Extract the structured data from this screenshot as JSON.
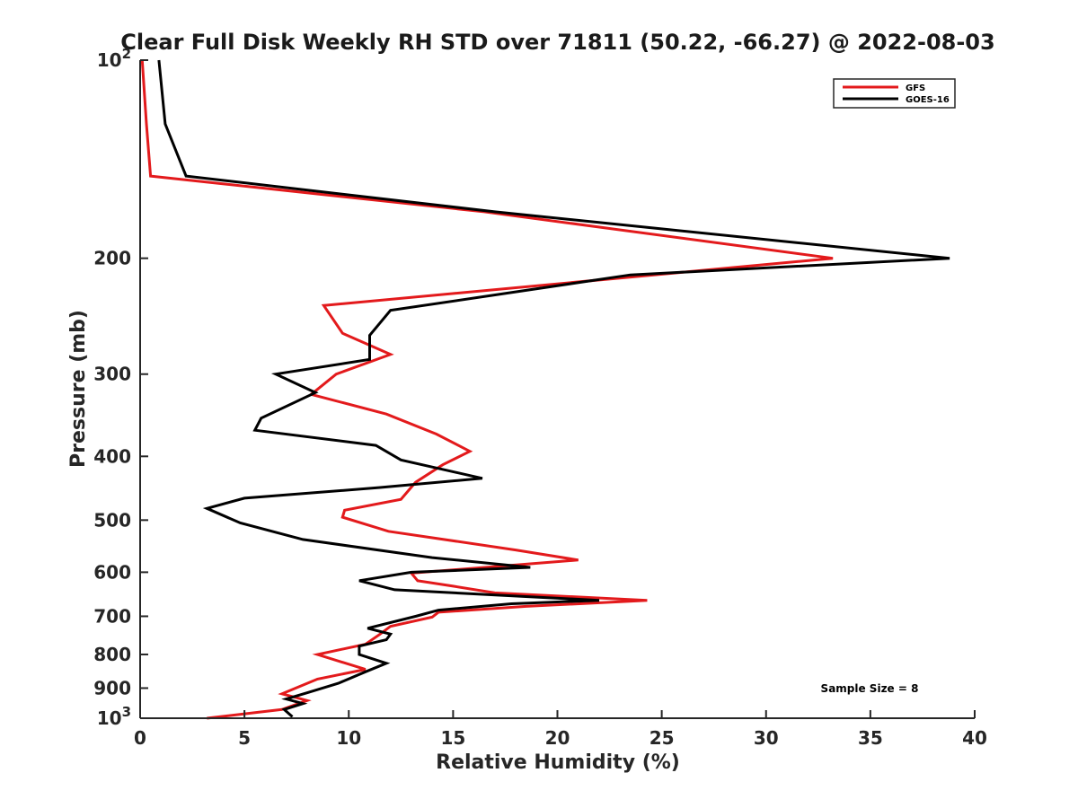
{
  "chart_data": {
    "type": "line",
    "title": "Clear Full Disk Weekly RH STD over 71811 (50.22, -66.27) @ 2022-08-03",
    "xlabel": "Relative Humidity (%)",
    "ylabel": "Pressure (mb)",
    "xlim": [
      0,
      40
    ],
    "ylim": [
      100,
      1000
    ],
    "y_scale": "log",
    "y_reversed": true,
    "x_ticks": [
      0,
      5,
      10,
      15,
      20,
      25,
      30,
      35,
      40
    ],
    "y_ticks": [
      {
        "value": 100,
        "base": "10",
        "exp": "2"
      },
      {
        "value": 200,
        "label": "200"
      },
      {
        "value": 300,
        "label": "300"
      },
      {
        "value": 400,
        "label": "400"
      },
      {
        "value": 500,
        "label": "500"
      },
      {
        "value": 600,
        "label": "600"
      },
      {
        "value": 700,
        "label": "700"
      },
      {
        "value": 800,
        "label": "800"
      },
      {
        "value": 900,
        "label": "900"
      },
      {
        "value": 1000,
        "base": "10",
        "exp": "3"
      }
    ],
    "legend_position": "top-right",
    "grid": false,
    "series": [
      {
        "name": "GFS",
        "color": "#e31a1c",
        "points": [
          [
            0.1,
            100
          ],
          [
            0.3,
            125
          ],
          [
            0.5,
            150
          ],
          [
            16.5,
            170
          ],
          [
            33.2,
            200
          ],
          [
            8.8,
            236
          ],
          [
            9.7,
            260
          ],
          [
            12.0,
            280
          ],
          [
            9.4,
            300
          ],
          [
            8.2,
            322
          ],
          [
            11.8,
            345
          ],
          [
            14.2,
            370
          ],
          [
            15.8,
            393
          ],
          [
            14.5,
            412
          ],
          [
            13.2,
            438
          ],
          [
            12.5,
            465
          ],
          [
            9.8,
            483
          ],
          [
            9.7,
            495
          ],
          [
            11.9,
            520
          ],
          [
            18.0,
            555
          ],
          [
            21.0,
            575
          ],
          [
            13.0,
            602
          ],
          [
            13.3,
            618
          ],
          [
            15.0,
            630
          ],
          [
            17.0,
            645
          ],
          [
            24.3,
            662
          ],
          [
            18.5,
            676
          ],
          [
            14.3,
            690
          ],
          [
            14.0,
            702
          ],
          [
            12.0,
            725
          ],
          [
            11.5,
            745
          ],
          [
            10.8,
            772
          ],
          [
            8.5,
            800
          ],
          [
            10.8,
            843
          ],
          [
            8.5,
            872
          ],
          [
            6.8,
            918
          ],
          [
            8.0,
            940
          ],
          [
            6.8,
            970
          ],
          [
            3.2,
            1000
          ]
        ]
      },
      {
        "name": "GOES-16",
        "color": "#000000",
        "points": [
          [
            0.9,
            100
          ],
          [
            1.2,
            125
          ],
          [
            2.2,
            150
          ],
          [
            17.0,
            170
          ],
          [
            38.8,
            200
          ],
          [
            23.5,
            212
          ],
          [
            12.0,
            240
          ],
          [
            11.0,
            262
          ],
          [
            11.0,
            285
          ],
          [
            6.5,
            300
          ],
          [
            8.4,
            320
          ],
          [
            5.8,
            350
          ],
          [
            5.5,
            365
          ],
          [
            11.3,
            385
          ],
          [
            12.5,
            405
          ],
          [
            16.4,
            432
          ],
          [
            11.5,
            446
          ],
          [
            5.0,
            463
          ],
          [
            3.2,
            480
          ],
          [
            4.8,
            505
          ],
          [
            7.8,
            535
          ],
          [
            14.0,
            570
          ],
          [
            18.7,
            590
          ],
          [
            13.0,
            600
          ],
          [
            10.5,
            618
          ],
          [
            12.2,
            638
          ],
          [
            22.0,
            662
          ],
          [
            17.8,
            670
          ],
          [
            14.3,
            685
          ],
          [
            13.2,
            700
          ],
          [
            10.9,
            730
          ],
          [
            12.0,
            745
          ],
          [
            11.8,
            760
          ],
          [
            10.5,
            777
          ],
          [
            10.5,
            800
          ],
          [
            11.8,
            825
          ],
          [
            10.8,
            850
          ],
          [
            9.5,
            885
          ],
          [
            8.0,
            915
          ],
          [
            7.0,
            935
          ],
          [
            7.8,
            950
          ],
          [
            6.9,
            970
          ],
          [
            7.3,
            995
          ]
        ]
      }
    ],
    "annotation": "Sample Size = 8"
  }
}
